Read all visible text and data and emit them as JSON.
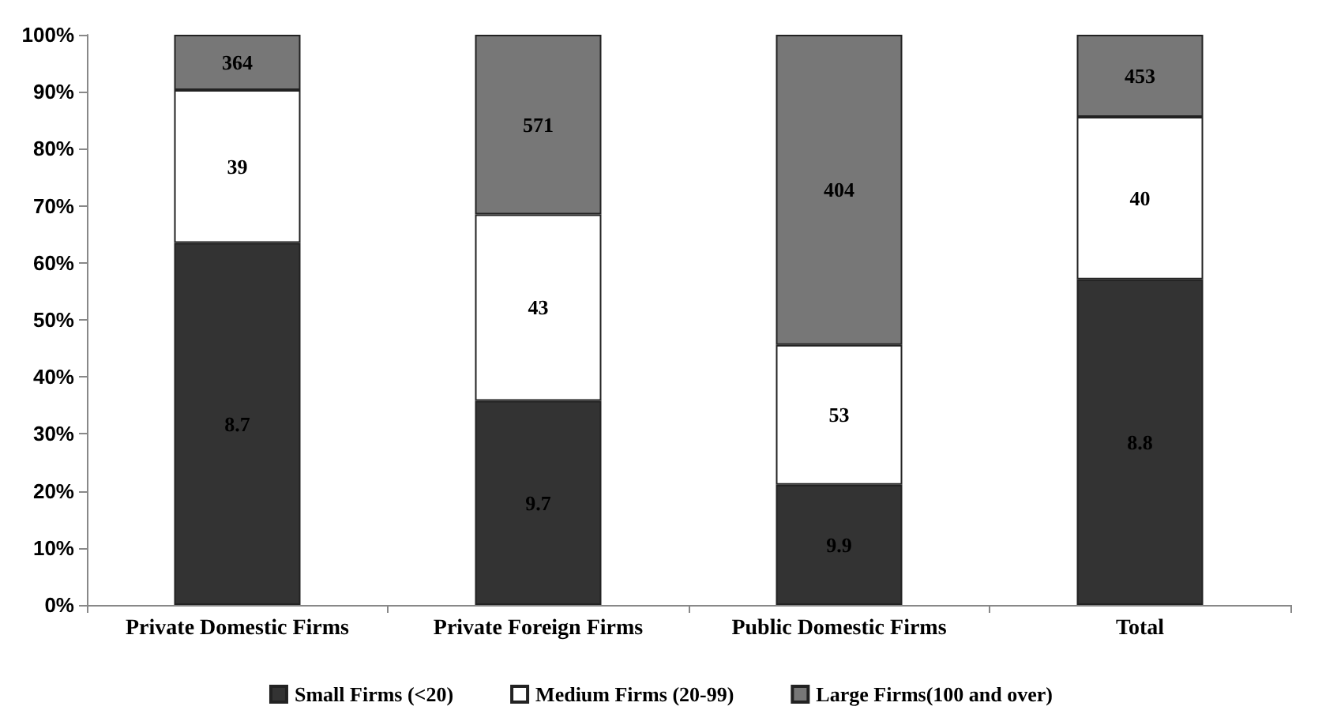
{
  "chart_data": {
    "type": "bar",
    "stacked": true,
    "categories": [
      "Private Domestic Firms",
      "Private Foreign Firms",
      "Public Domestic Firms",
      "Total"
    ],
    "series": [
      {
        "name": "Small Firms (<20)",
        "color": "#333333",
        "values": [
          63.5,
          35.8,
          21.1,
          57.1
        ]
      },
      {
        "name": "Medium Firms (20-99)",
        "color": "#ffffff",
        "values": [
          26.8,
          32.7,
          24.5,
          28.5
        ]
      },
      {
        "name": "Large Firms(100 and over)",
        "color": "#777777",
        "values": [
          9.7,
          31.5,
          54.4,
          14.4
        ]
      }
    ],
    "annotations": [
      "8.7",
      "39",
      "364",
      "9.7",
      "43",
      "571",
      "9.9",
      "53",
      "404",
      "8.8",
      "40",
      "453"
    ],
    "ylim": [
      0,
      100
    ],
    "yticks": [
      {
        "value": 0,
        "label": "0%"
      },
      {
        "value": 10,
        "label": "10%"
      },
      {
        "value": 20,
        "label": "20%"
      },
      {
        "value": 30,
        "label": "30%"
      },
      {
        "value": 40,
        "label": "40%"
      },
      {
        "value": 50,
        "label": "50%"
      },
      {
        "value": 60,
        "label": "60%"
      },
      {
        "value": 70,
        "label": "70%"
      },
      {
        "value": 80,
        "label": "80%"
      },
      {
        "value": 90,
        "label": "90%"
      },
      {
        "value": 100,
        "label": "100%"
      }
    ],
    "grid": false,
    "legend": "bottom"
  }
}
